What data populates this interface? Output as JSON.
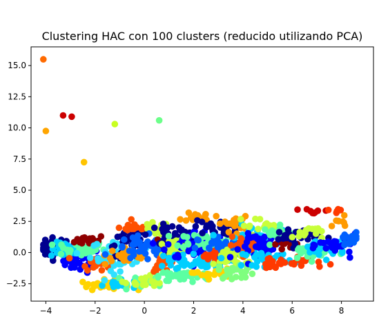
{
  "chart_data": {
    "type": "scatter",
    "title": "Clustering HAC con 100 clusters (reducido utilizando PCA)",
    "xlabel": "",
    "ylabel": "",
    "xlim": [
      -4.6,
      9.3
    ],
    "ylim": [
      -3.9,
      16.5
    ],
    "x_ticks": [
      -4,
      -2,
      0,
      2,
      4,
      6,
      8
    ],
    "x_tick_labels": [
      "−4",
      "−2",
      "0",
      "2",
      "4",
      "6",
      "8"
    ],
    "y_ticks": [
      -2.5,
      0.0,
      2.5,
      5.0,
      7.5,
      10.0,
      12.5,
      15.0
    ],
    "y_tick_labels": [
      "−2.5",
      "0.0",
      "2.5",
      "5.0",
      "7.5",
      "10.0",
      "12.5",
      "15.0"
    ],
    "grid": false,
    "colormap": "jet",
    "outliers": [
      {
        "x": -4.1,
        "y": 15.5,
        "color": "#ff6a00"
      },
      {
        "x": -4.0,
        "y": 9.75,
        "color": "#ffa500"
      },
      {
        "x": -3.3,
        "y": 11.0,
        "color": "#cc0000"
      },
      {
        "x": -2.95,
        "y": 10.9,
        "color": "#cc0000"
      },
      {
        "x": -2.45,
        "y": 7.25,
        "color": "#ffc400"
      },
      {
        "x": -1.2,
        "y": 10.3,
        "color": "#c8ff20"
      },
      {
        "x": 0.6,
        "y": 10.6,
        "color": "#6cff8a"
      }
    ],
    "clusters": [
      {
        "color": "#00008f",
        "cx": -3.6,
        "cy": 0.4,
        "sx": 0.35,
        "sy": 0.4,
        "n": 40
      },
      {
        "color": "#0000ff",
        "cx": -2.6,
        "cy": -0.6,
        "sx": 0.4,
        "sy": 0.5,
        "n": 40
      },
      {
        "color": "#00cfff",
        "cx": -3.2,
        "cy": 0.2,
        "sx": 0.3,
        "sy": 0.3,
        "n": 30
      },
      {
        "color": "#5cffa2",
        "cx": -2.6,
        "cy": 0.3,
        "sx": 0.5,
        "sy": 0.3,
        "n": 40
      },
      {
        "color": "#8f0000",
        "cx": -2.2,
        "cy": 1.0,
        "sx": 0.3,
        "sy": 0.2,
        "n": 20
      },
      {
        "color": "#ff5000",
        "cx": -2.0,
        "cy": -0.8,
        "sx": 0.3,
        "sy": 0.3,
        "n": 18
      },
      {
        "color": "#ffd400",
        "cx": -1.6,
        "cy": -2.6,
        "sx": 0.5,
        "sy": 0.2,
        "n": 30
      },
      {
        "color": "#00cfff",
        "cx": -1.0,
        "cy": -2.5,
        "sx": 0.35,
        "sy": 0.2,
        "n": 20
      },
      {
        "color": "#2fe0ff",
        "cx": -1.0,
        "cy": -0.2,
        "sx": 0.6,
        "sy": 0.6,
        "n": 50
      },
      {
        "color": "#00008f",
        "cx": -0.5,
        "cy": 0.6,
        "sx": 0.5,
        "sy": 0.5,
        "n": 40
      },
      {
        "color": "#ff9a00",
        "cx": -0.6,
        "cy": -0.2,
        "sx": 0.5,
        "sy": 0.4,
        "n": 30
      },
      {
        "color": "#ff5000",
        "cx": -0.4,
        "cy": 2.0,
        "sx": 0.3,
        "sy": 0.2,
        "n": 15
      },
      {
        "color": "#c8ff3a",
        "cx": 0.4,
        "cy": 1.9,
        "sx": 0.3,
        "sy": 0.25,
        "n": 18
      },
      {
        "color": "#0060ff",
        "cx": 0.0,
        "cy": 0.3,
        "sx": 0.6,
        "sy": 0.5,
        "n": 50
      },
      {
        "color": "#5cffa2",
        "cx": 0.4,
        "cy": -2.3,
        "sx": 0.5,
        "sy": 0.25,
        "n": 30
      },
      {
        "color": "#c8ff3a",
        "cx": 0.0,
        "cy": -2.3,
        "sx": 0.4,
        "sy": 0.2,
        "n": 20
      },
      {
        "color": "#ff5000",
        "cx": 0.8,
        "cy": -0.9,
        "sx": 0.25,
        "sy": 0.3,
        "n": 18
      },
      {
        "color": "#8f0000",
        "cx": 0.8,
        "cy": 0.8,
        "sx": 0.2,
        "sy": 0.2,
        "n": 12
      },
      {
        "color": "#00008f",
        "cx": 1.2,
        "cy": 1.4,
        "sx": 0.5,
        "sy": 0.4,
        "n": 40
      },
      {
        "color": "#c8ff3a",
        "cx": 1.2,
        "cy": 0.3,
        "sx": 0.5,
        "sy": 0.4,
        "n": 30
      },
      {
        "color": "#5cffa2",
        "cx": 1.6,
        "cy": -1.9,
        "sx": 0.5,
        "sy": 0.25,
        "n": 30
      },
      {
        "color": "#00cfff",
        "cx": 1.4,
        "cy": -0.7,
        "sx": 0.4,
        "sy": 0.4,
        "n": 25
      },
      {
        "color": "#0000ff",
        "cx": 2.1,
        "cy": 0.6,
        "sx": 0.6,
        "sy": 0.6,
        "n": 50
      },
      {
        "color": "#ff9a00",
        "cx": 2.2,
        "cy": 2.9,
        "sx": 0.3,
        "sy": 0.2,
        "n": 15
      },
      {
        "color": "#5cffa2",
        "cx": 2.3,
        "cy": 1.0,
        "sx": 0.5,
        "sy": 0.3,
        "n": 30
      },
      {
        "color": "#00cfff",
        "cx": 2.4,
        "cy": -0.8,
        "sx": 0.5,
        "sy": 0.4,
        "n": 30
      },
      {
        "color": "#00008f",
        "cx": 2.9,
        "cy": 2.0,
        "sx": 0.45,
        "sy": 0.3,
        "n": 30
      },
      {
        "color": "#ff3a00",
        "cx": 2.9,
        "cy": -0.3,
        "sx": 0.25,
        "sy": 0.25,
        "n": 20
      },
      {
        "color": "#ffd400",
        "cx": 2.8,
        "cy": -1.7,
        "sx": 0.4,
        "sy": 0.2,
        "n": 20
      },
      {
        "color": "#0060ff",
        "cx": 3.4,
        "cy": 0.3,
        "sx": 0.6,
        "sy": 0.5,
        "n": 50
      },
      {
        "color": "#c8ff3a",
        "cx": 3.7,
        "cy": -0.4,
        "sx": 0.4,
        "sy": 0.4,
        "n": 30
      },
      {
        "color": "#ff9a00",
        "cx": 3.6,
        "cy": 2.3,
        "sx": 0.3,
        "sy": 0.3,
        "n": 18
      },
      {
        "color": "#7fff7f",
        "cx": 3.8,
        "cy": -1.5,
        "sx": 0.4,
        "sy": 0.3,
        "n": 25
      },
      {
        "color": "#00cfff",
        "cx": 4.3,
        "cy": 1.2,
        "sx": 0.5,
        "sy": 0.5,
        "n": 35
      },
      {
        "color": "#ff5000",
        "cx": 4.2,
        "cy": 0.6,
        "sx": 0.4,
        "sy": 0.3,
        "n": 18
      },
      {
        "color": "#c8ff3a",
        "cx": 4.6,
        "cy": 2.2,
        "sx": 0.4,
        "sy": 0.3,
        "n": 15
      },
      {
        "color": "#0000ff",
        "cx": 4.9,
        "cy": 0.5,
        "sx": 0.5,
        "sy": 0.5,
        "n": 40
      },
      {
        "color": "#00cfff",
        "cx": 5.0,
        "cy": -0.5,
        "sx": 0.5,
        "sy": 0.3,
        "n": 30
      },
      {
        "color": "#ff3a00",
        "cx": 5.2,
        "cy": -0.9,
        "sx": 0.3,
        "sy": 0.2,
        "n": 15
      },
      {
        "color": "#5cffa2",
        "cx": 5.6,
        "cy": 1.5,
        "sx": 0.4,
        "sy": 0.3,
        "n": 20
      },
      {
        "color": "#8f0000",
        "cx": 5.8,
        "cy": 0.7,
        "sx": 0.2,
        "sy": 0.2,
        "n": 12
      },
      {
        "color": "#00008f",
        "cx": 6.1,
        "cy": 1.3,
        "sx": 0.5,
        "sy": 0.4,
        "n": 30
      },
      {
        "color": "#c8ff3a",
        "cx": 6.6,
        "cy": 1.6,
        "sx": 0.3,
        "sy": 0.3,
        "n": 15
      },
      {
        "color": "#ff3a00",
        "cx": 6.6,
        "cy": -0.8,
        "sx": 0.35,
        "sy": 0.2,
        "n": 15
      },
      {
        "color": "#5cffa2",
        "cx": 6.8,
        "cy": 0.0,
        "sx": 0.5,
        "sy": 0.3,
        "n": 25
      },
      {
        "color": "#00cfff",
        "cx": 7.2,
        "cy": 0.4,
        "sx": 0.5,
        "sy": 0.4,
        "n": 25
      },
      {
        "color": "#cc0000",
        "cx": 6.8,
        "cy": 3.2,
        "sx": 0.5,
        "sy": 0.1,
        "n": 8
      },
      {
        "color": "#0000ff",
        "cx": 7.9,
        "cy": 0.6,
        "sx": 0.4,
        "sy": 0.4,
        "n": 25
      },
      {
        "color": "#ff9a00",
        "cx": 7.9,
        "cy": 2.4,
        "sx": 0.25,
        "sy": 0.2,
        "n": 8
      },
      {
        "color": "#0060ff",
        "cx": 8.3,
        "cy": 0.9,
        "sx": 0.3,
        "sy": 0.4,
        "n": 15
      },
      {
        "color": "#ff3a00",
        "cx": 7.9,
        "cy": 3.4,
        "sx": 0.3,
        "sy": 0.1,
        "n": 6
      }
    ]
  }
}
